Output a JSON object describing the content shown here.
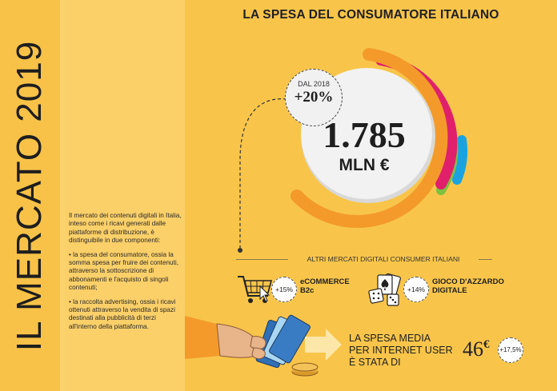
{
  "sidebar": {
    "title": "IL MERCATO 2019"
  },
  "description": {
    "intro": "Il mercato dei contenuti digitali in Italia, inteso come i ricavi generati dalle piattaforme di distribuzione, è distinguibile in due componenti:",
    "item1": "• la spesa del consumatore, ossia la somma spesa per fruire dei contenuti, attraverso la sottoscrizione di abbonamenti e l'acquisto di singoli contenuti;",
    "item2": "• la raccolta advertising, ossia i ricavi ottenuti attraverso la vendita di spazi destinati alla pubblicità di terzi all'interno della piattaforma."
  },
  "headline": "LA SPESA DEL CONSUMATORE ITALIANO",
  "total": {
    "value": "1.785",
    "unit": "MLN €"
  },
  "growth": {
    "label": "DAL 2018",
    "value": "+20%"
  },
  "other_markets": {
    "label": "ALTRI MERCATI DIGITALI CONSUMER ITALIANI",
    "items": [
      {
        "icon": "shopping-cart-icon",
        "badge": "+15%",
        "name_line1": "eCOMMERCE",
        "name_line2": "B2c"
      },
      {
        "icon": "gambling-icon",
        "badge": "+14%",
        "name_line1": "GIOCO D'AZZARDO",
        "name_line2": "DIGITALE"
      }
    ]
  },
  "average": {
    "line1": "LA SPESA MEDIA",
    "line2": "PER INTERNET USER",
    "line3": "È STATA DI",
    "value": "46",
    "currency": "€",
    "badge": "+17,5%"
  },
  "colors": {
    "orange": "#f39a2b",
    "magenta": "#e0206b",
    "green": "#7dc142",
    "blue": "#1aa3df",
    "background": "#f8c54a"
  }
}
